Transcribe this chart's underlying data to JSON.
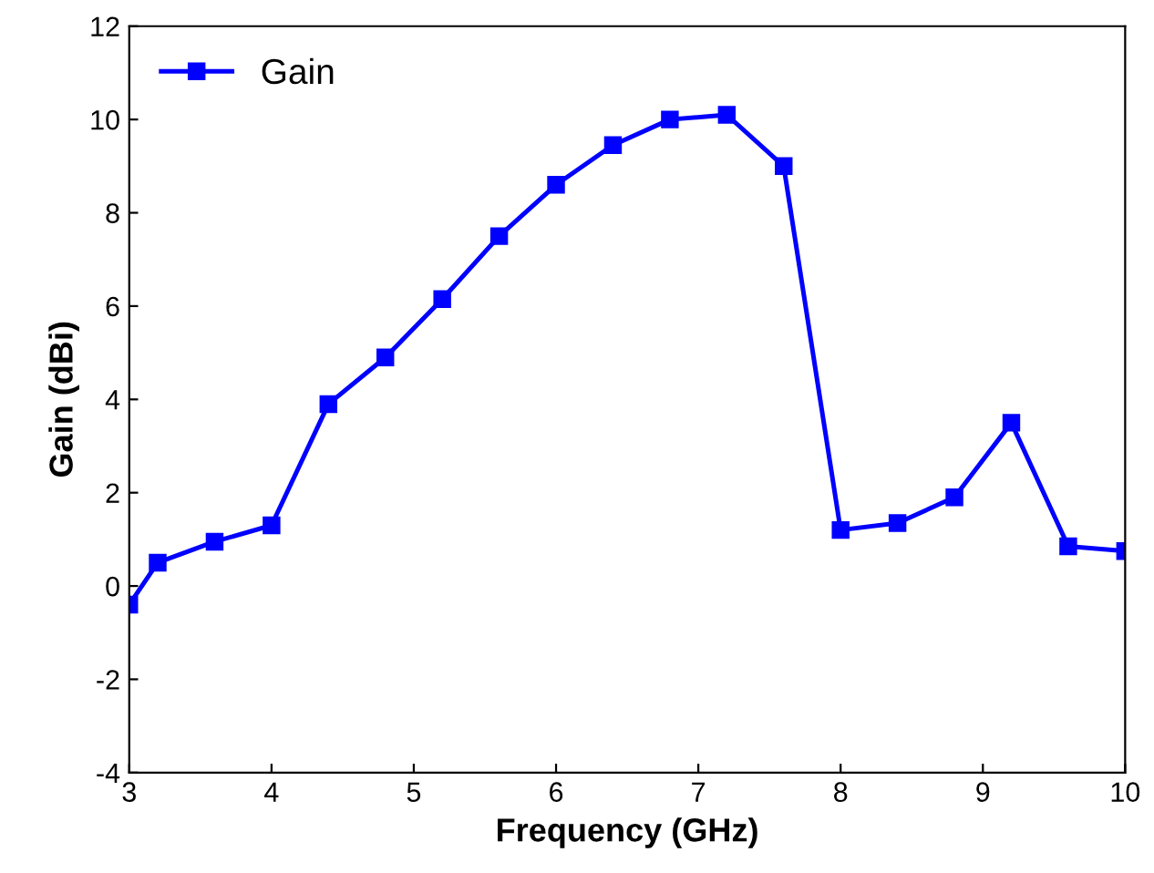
{
  "chart_data": {
    "type": "line",
    "xlabel": "Frequency (GHz)",
    "ylabel": "Gain (dBi)",
    "x": [
      3.0,
      3.2,
      3.6,
      4.0,
      4.4,
      4.8,
      5.2,
      5.6,
      6.0,
      6.4,
      6.8,
      7.2,
      7.6,
      8.0,
      8.4,
      8.8,
      9.2,
      9.6,
      10.0
    ],
    "series": [
      {
        "name": "Gain",
        "color": "#0000ff",
        "values": [
          -0.4,
          0.5,
          0.95,
          1.3,
          3.9,
          4.9,
          6.15,
          7.5,
          8.6,
          9.45,
          10.0,
          10.1,
          9.0,
          1.2,
          1.35,
          1.9,
          3.5,
          0.85,
          0.75
        ]
      }
    ],
    "xlim": [
      3,
      10
    ],
    "xticks": [
      3,
      4,
      5,
      6,
      7,
      8,
      9,
      10
    ],
    "ylim": [
      -4,
      12
    ],
    "yticks": [
      -4,
      -2,
      0,
      2,
      4,
      6,
      8,
      10,
      12
    ],
    "marker": "square",
    "line_style": "solid",
    "legend": "top left",
    "grid": false
  }
}
